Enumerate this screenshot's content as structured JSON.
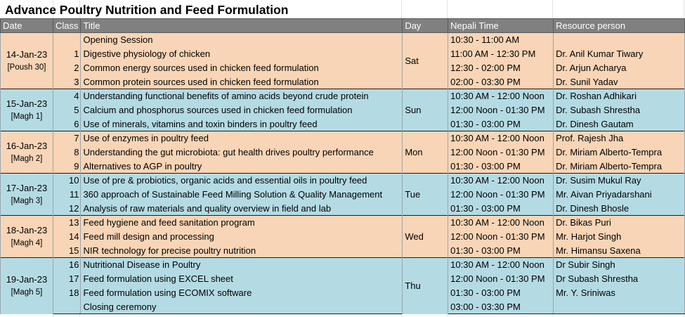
{
  "title": "Advance Poultry Nutrition and Feed Formulation",
  "headers": [
    "Date",
    "Class",
    "Title",
    "Day",
    "Nepali Time",
    "Resource person"
  ],
  "groups": [
    {
      "date": "14-Jan-23",
      "date_sub": "[Poush 30]",
      "day": "Sat",
      "color": "#f8d5b6",
      "rows": [
        {
          "cls": "",
          "title": "Opening Session",
          "time": "10:30 - 11:00 AM",
          "person": ""
        },
        {
          "cls": "1",
          "title": "Digestive physiology of chicken",
          "time": "11:00 AM - 12:30 PM",
          "person": "Dr. Anil Kumar Tiwary"
        },
        {
          "cls": "2",
          "title": "Common energy sources used in chicken feed formulation",
          "time": "12:30 - 02:00 PM",
          "person": "Dr. Arjun Acharya"
        },
        {
          "cls": "3",
          "title": "Common protein sources used in chicken feed formulation",
          "time": "02:00 - 03:30 PM",
          "person": "Dr. Sunil Yadav"
        }
      ]
    },
    {
      "date": "15-Jan-23",
      "date_sub": "[Magh 1]",
      "day": "Sun",
      "color": "#b4dbe4",
      "rows": [
        {
          "cls": "4",
          "title": "Understanding functional benefits of amino acids beyond crude protein",
          "time": "10:30 AM - 12:00 Noon",
          "person": "Dr. Roshan Adhikari"
        },
        {
          "cls": "5",
          "title": "Calcium and phosphorus sources used in chicken feed formulation",
          "time": "12:00 Noon - 01:30 PM",
          "person": "Dr. Subash Shrestha"
        },
        {
          "cls": "6",
          "title": "Use of minerals, vitamins and toxin binders in poultry feed",
          "time": "01:30 - 03:00 PM",
          "person": "Dr. Dinesh Gautam"
        }
      ]
    },
    {
      "date": "16-Jan-23",
      "date_sub": "[Magh 2]",
      "day": "Mon",
      "color": "#f8d5b6",
      "rows": [
        {
          "cls": "7",
          "title": "Use of enzymes in poultry feed",
          "time": "10:30 AM - 12:00 Noon",
          "person": "Prof. Rajesh Jha"
        },
        {
          "cls": "8",
          "title": "Understanding the gut microbiota: gut health drives poultry performance",
          "time": "12:00 Noon - 01:30 PM",
          "person": "Dr. Miriam Alberto-Tempra"
        },
        {
          "cls": "9",
          "title": "Alternatives to AGP in poultry",
          "time": "01:30 - 03:00 PM",
          "person": "Dr. Miriam Alberto-Tempra"
        }
      ]
    },
    {
      "date": "17-Jan-23",
      "date_sub": "[Magh 3]",
      "day": "Tue",
      "color": "#b4dbe4",
      "rows": [
        {
          "cls": "10",
          "title": "Use of pre & probiotics, organic acids and essential oils in poultry feed",
          "time": "10:30 AM - 12:00 Noon",
          "person": "Dr. Susim Mukul Ray"
        },
        {
          "cls": "11",
          "title": "360 approach of Sustainable Feed Milling Solution & Quality Management",
          "time": "12:00 Noon - 01:30 PM",
          "person": "Mr. Aivan Priyadarshani"
        },
        {
          "cls": "12",
          "title": "Analysis of raw materials and quality overview in field and lab",
          "time": "01:30 - 03:00 PM",
          "person": "Dr. Dinesh Bhosle"
        }
      ]
    },
    {
      "date": "18-Jan-23",
      "date_sub": "[Magh 4]",
      "day": "Wed",
      "color": "#f8d5b6",
      "rows": [
        {
          "cls": "13",
          "title": "Feed hygiene and feed sanitation program",
          "time": "10:30 AM - 12:00 Noon",
          "person": "Dr. Bikas Puri"
        },
        {
          "cls": "14",
          "title": "Feed mill design and processing",
          "time": "12:00 Noon - 01:30 PM",
          "person": "Mr. Harjot Singh"
        },
        {
          "cls": "15",
          "title": "NIR technology for precise poultry nutrition",
          "time": "01:30 - 03:00 PM",
          "person": "Mr. Himansu Saxena"
        }
      ]
    },
    {
      "date": "19-Jan-23",
      "date_sub": "[Magh 5]",
      "day": "Thu",
      "color": "#b4dbe4",
      "rows": [
        {
          "cls": "16",
          "title": "Nutritional Disease in Poultry",
          "time": "10:30 AM - 12:00 Noon",
          "person": "Dr Subir Singh"
        },
        {
          "cls": "17",
          "title": "Feed formulation using EXCEL sheet",
          "time": "12:00 Noon - 01:30 PM",
          "person": "Dr Subash Shrestha"
        },
        {
          "cls": "18",
          "title": "Feed formulation using ECOMIX software",
          "time": "01:30 - 03:00 PM",
          "person": "Mr. Y. Sriniwas"
        },
        {
          "cls": "",
          "title": "Closing ceremony",
          "time": "03:00 - 03:30 PM",
          "person": ""
        }
      ]
    }
  ]
}
